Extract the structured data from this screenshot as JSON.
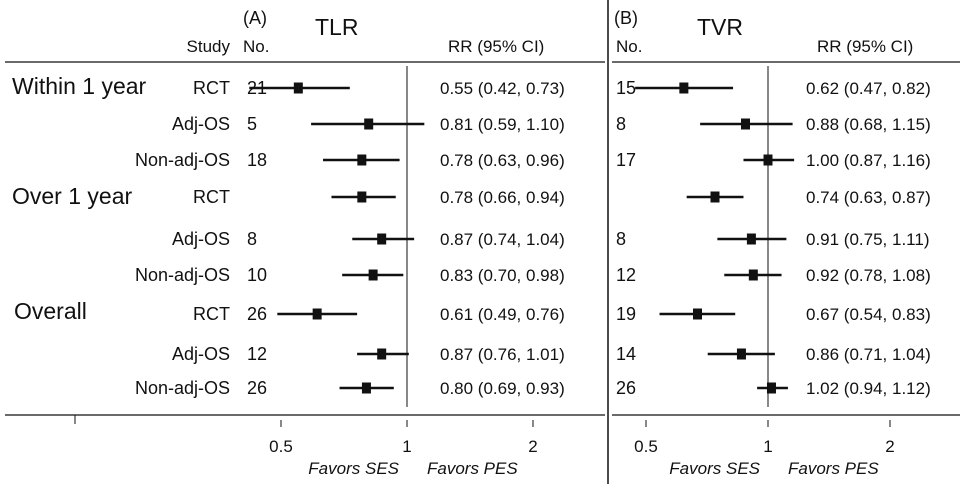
{
  "header": {
    "study_label": "Study",
    "no_label": "No.",
    "rr_label": "RR (95% CI)"
  },
  "groups": [
    "Within 1 year",
    "Over 1 year",
    "Overall"
  ],
  "rows": [
    {
      "group": "Within 1 year",
      "study": "RCT"
    },
    {
      "group": "Within 1 year",
      "study": "Adj-OS"
    },
    {
      "group": "Within 1 year",
      "study": "Non-adj-OS"
    },
    {
      "group": "Over 1 year",
      "study": "RCT"
    },
    {
      "group": "Over 1 year",
      "study": "Adj-OS"
    },
    {
      "group": "Over 1 year",
      "study": "Non-adj-OS"
    },
    {
      "group": "Overall",
      "study": "RCT"
    },
    {
      "group": "Overall",
      "study": "Adj-OS"
    },
    {
      "group": "Overall",
      "study": "Non-adj-OS"
    }
  ],
  "colors": {
    "ink": "#111111",
    "background": "#ffffff"
  },
  "chart_data": [
    {
      "type": "forest",
      "panel": "(A)",
      "title": "TLR",
      "scale": "log",
      "xticks": [
        0.5,
        1,
        2
      ],
      "xtick_labels": [
        "0.5",
        "1",
        "2"
      ],
      "reference_line": 1,
      "favors_left": "Favors SES",
      "favors_right": "Favors PES",
      "no": [
        "21",
        "5",
        "18",
        "",
        "8",
        "10",
        "26",
        "12",
        "26"
      ],
      "rr": [
        0.55,
        0.81,
        0.78,
        0.78,
        0.87,
        0.83,
        0.61,
        0.87,
        0.8
      ],
      "lo": [
        0.42,
        0.59,
        0.63,
        0.66,
        0.74,
        0.7,
        0.49,
        0.76,
        0.69
      ],
      "hi": [
        0.73,
        1.1,
        0.96,
        0.94,
        1.04,
        0.98,
        0.76,
        1.01,
        0.93
      ],
      "ci_text": [
        "0.55 (0.42, 0.73)",
        "0.81 (0.59, 1.10)",
        "0.78 (0.63, 0.96)",
        "0.78 (0.66, 0.94)",
        "0.87 (0.74, 1.04)",
        "0.83 (0.70, 0.98)",
        "0.61 (0.49, 0.76)",
        "0.87 (0.76, 1.01)",
        "0.80 (0.69, 0.93)"
      ]
    },
    {
      "type": "forest",
      "panel": "(B)",
      "title": "TVR",
      "scale": "log",
      "xticks": [
        0.5,
        1,
        2
      ],
      "xtick_labels": [
        "0.5",
        "1",
        "2"
      ],
      "reference_line": 1,
      "favors_left": "Favors SES",
      "favors_right": "Favors PES",
      "no": [
        "15",
        "8",
        "17",
        "",
        "8",
        "12",
        "19",
        "14",
        "26"
      ],
      "rr": [
        0.62,
        0.88,
        1.0,
        0.74,
        0.91,
        0.92,
        0.67,
        0.86,
        1.02
      ],
      "lo": [
        0.47,
        0.68,
        0.87,
        0.63,
        0.75,
        0.78,
        0.54,
        0.71,
        0.94
      ],
      "hi": [
        0.82,
        1.15,
        1.16,
        0.87,
        1.11,
        1.08,
        0.83,
        1.04,
        1.12
      ],
      "ci_text": [
        "0.62 (0.47, 0.82)",
        "0.88 (0.68, 1.15)",
        "1.00 (0.87, 1.16)",
        "0.74 (0.63, 0.87)",
        "0.91 (0.75, 1.11)",
        "0.92 (0.78, 1.08)",
        "0.67 (0.54, 0.83)",
        "0.86 (0.71, 1.04)",
        "1.02 (0.94, 1.12)"
      ]
    }
  ]
}
